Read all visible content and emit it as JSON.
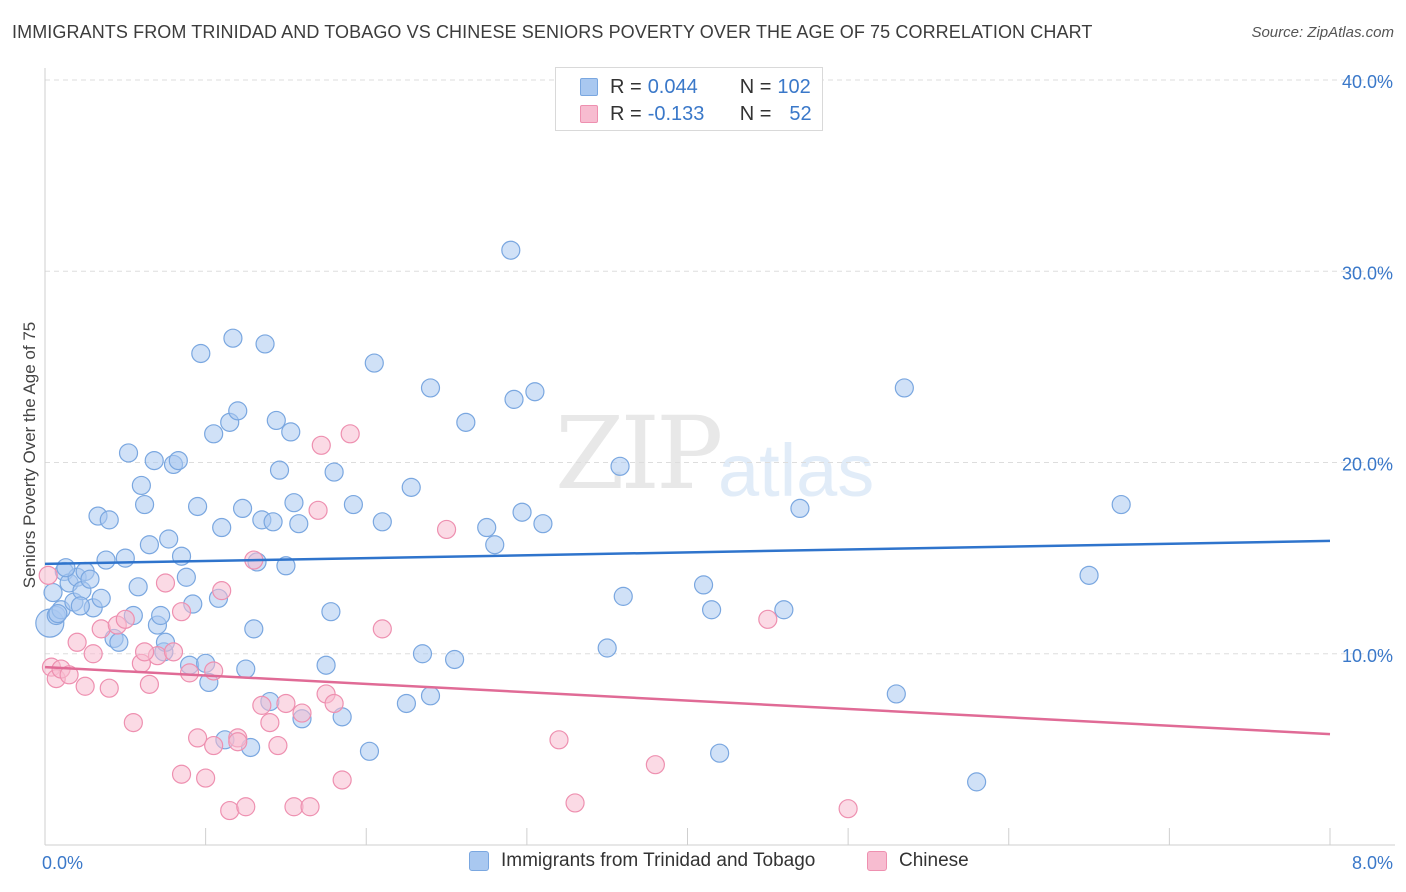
{
  "title": "IMMIGRANTS FROM TRINIDAD AND TOBAGO VS CHINESE SENIORS POVERTY OVER THE AGE OF 75 CORRELATION CHART",
  "source": "Source: ZipAtlas.com",
  "watermark": {
    "zip": "ZIP",
    "atlas": "atlas"
  },
  "colors": {
    "blue_fill": "#a9c8f0",
    "blue_stroke": "#7aa7e0",
    "blue_line": "#2f74cc",
    "pink_fill": "#f7bcd0",
    "pink_stroke": "#ee90b0",
    "pink_line": "#e06b96",
    "tick_label": "#3a78c9",
    "grid": "#dddddd"
  },
  "legend_top": {
    "rows": [
      {
        "r_label": "R = ",
        "r_value": "0.044",
        "n_label": "N = ",
        "n_value": "102"
      },
      {
        "r_label": "R = ",
        "r_value": "-0.133",
        "n_label": "N = ",
        "n_value": "52"
      }
    ]
  },
  "legend_bottom": [
    "Immigrants from Trinidad and Tobago",
    "Chinese"
  ],
  "chart_data": {
    "type": "scatter",
    "title": "IMMIGRANTS FROM TRINIDAD AND TOBAGO VS CHINESE SENIORS POVERTY OVER THE AGE OF 75 CORRELATION CHART",
    "xlabel": "",
    "ylabel": "Seniors Poverty Over the Age of 75",
    "xlim": [
      0,
      8
    ],
    "ylim": [
      0,
      40
    ],
    "x_tick_labels": [
      "0.0%",
      "8.0%"
    ],
    "y_ticks": [
      10,
      20,
      30,
      40
    ],
    "y_tick_labels": [
      "10.0%",
      "20.0%",
      "30.0%",
      "40.0%"
    ],
    "grid": true,
    "legend_position": "top-center",
    "series": [
      {
        "name": "Immigrants from Trinidad and Tobago",
        "color": "#a9c8f0",
        "trend": {
          "x": [
            0,
            8
          ],
          "y": [
            14.7,
            15.9
          ]
        },
        "points": [
          [
            0.03,
            11.6
          ],
          [
            0.05,
            13.2
          ],
          [
            0.07,
            12.0
          ],
          [
            0.1,
            12.3
          ],
          [
            0.12,
            14.3
          ],
          [
            0.15,
            13.7
          ],
          [
            0.18,
            12.7
          ],
          [
            0.2,
            14.0
          ],
          [
            0.23,
            13.3
          ],
          [
            0.25,
            14.3
          ],
          [
            0.28,
            13.9
          ],
          [
            0.3,
            12.4
          ],
          [
            0.33,
            17.2
          ],
          [
            0.35,
            12.9
          ],
          [
            0.38,
            14.9
          ],
          [
            0.4,
            17.0
          ],
          [
            0.43,
            10.8
          ],
          [
            0.46,
            10.6
          ],
          [
            0.5,
            15.0
          ],
          [
            0.52,
            20.5
          ],
          [
            0.55,
            12.0
          ],
          [
            0.58,
            13.5
          ],
          [
            0.6,
            18.8
          ],
          [
            0.62,
            17.8
          ],
          [
            0.65,
            15.7
          ],
          [
            0.68,
            20.1
          ],
          [
            0.7,
            11.5
          ],
          [
            0.72,
            12.0
          ],
          [
            0.74,
            10.1
          ],
          [
            0.75,
            10.6
          ],
          [
            0.77,
            16.0
          ],
          [
            0.8,
            19.9
          ],
          [
            0.83,
            20.1
          ],
          [
            0.85,
            15.1
          ],
          [
            0.88,
            14.0
          ],
          [
            0.9,
            9.4
          ],
          [
            0.92,
            12.6
          ],
          [
            0.95,
            17.7
          ],
          [
            0.97,
            25.7
          ],
          [
            1.0,
            9.5
          ],
          [
            1.02,
            8.5
          ],
          [
            1.05,
            21.5
          ],
          [
            1.08,
            12.9
          ],
          [
            1.1,
            16.6
          ],
          [
            1.12,
            5.5
          ],
          [
            1.15,
            22.1
          ],
          [
            1.17,
            26.5
          ],
          [
            1.2,
            22.7
          ],
          [
            1.23,
            17.6
          ],
          [
            1.25,
            9.2
          ],
          [
            1.28,
            5.1
          ],
          [
            1.3,
            11.3
          ],
          [
            1.32,
            14.8
          ],
          [
            1.35,
            17.0
          ],
          [
            1.37,
            26.2
          ],
          [
            1.4,
            7.5
          ],
          [
            1.42,
            16.9
          ],
          [
            1.44,
            22.2
          ],
          [
            1.46,
            19.6
          ],
          [
            1.5,
            14.6
          ],
          [
            1.53,
            21.6
          ],
          [
            1.55,
            17.9
          ],
          [
            1.58,
            16.8
          ],
          [
            1.6,
            6.6
          ],
          [
            1.75,
            9.4
          ],
          [
            1.78,
            12.2
          ],
          [
            1.8,
            19.5
          ],
          [
            1.85,
            6.7
          ],
          [
            1.92,
            17.8
          ],
          [
            2.02,
            4.9
          ],
          [
            2.05,
            25.2
          ],
          [
            2.1,
            16.9
          ],
          [
            2.25,
            7.4
          ],
          [
            2.28,
            18.7
          ],
          [
            2.35,
            10.0
          ],
          [
            2.4,
            23.9
          ],
          [
            2.4,
            7.8
          ],
          [
            2.55,
            9.7
          ],
          [
            2.62,
            22.1
          ],
          [
            2.75,
            16.6
          ],
          [
            2.8,
            15.7
          ],
          [
            2.9,
            31.1
          ],
          [
            2.92,
            23.3
          ],
          [
            2.97,
            17.4
          ],
          [
            3.05,
            23.7
          ],
          [
            3.1,
            16.8
          ],
          [
            3.5,
            10.3
          ],
          [
            3.58,
            19.8
          ],
          [
            3.6,
            13.0
          ],
          [
            4.1,
            13.6
          ],
          [
            4.15,
            12.3
          ],
          [
            4.2,
            4.8
          ],
          [
            4.6,
            12.3
          ],
          [
            4.7,
            17.6
          ],
          [
            5.3,
            7.9
          ],
          [
            5.35,
            23.9
          ],
          [
            5.8,
            3.3
          ],
          [
            6.5,
            14.1
          ],
          [
            6.7,
            17.8
          ],
          [
            0.08,
            12.1
          ],
          [
            0.13,
            14.5
          ],
          [
            0.22,
            12.5
          ]
        ]
      },
      {
        "name": "Chinese",
        "color": "#f7bcd0",
        "trend": {
          "x": [
            0,
            8
          ],
          "y": [
            9.3,
            5.8
          ]
        },
        "points": [
          [
            0.02,
            14.1
          ],
          [
            0.04,
            9.3
          ],
          [
            0.07,
            8.7
          ],
          [
            0.1,
            9.2
          ],
          [
            0.15,
            8.9
          ],
          [
            0.2,
            10.6
          ],
          [
            0.25,
            8.3
          ],
          [
            0.3,
            10.0
          ],
          [
            0.35,
            11.3
          ],
          [
            0.4,
            8.2
          ],
          [
            0.45,
            11.5
          ],
          [
            0.5,
            11.8
          ],
          [
            0.55,
            6.4
          ],
          [
            0.6,
            9.5
          ],
          [
            0.65,
            8.4
          ],
          [
            0.7,
            9.9
          ],
          [
            0.75,
            13.7
          ],
          [
            0.8,
            10.1
          ],
          [
            0.85,
            3.7
          ],
          [
            0.9,
            9.0
          ],
          [
            0.95,
            5.6
          ],
          [
            1.0,
            3.5
          ],
          [
            1.05,
            9.1
          ],
          [
            1.1,
            13.3
          ],
          [
            1.15,
            1.8
          ],
          [
            1.2,
            5.6
          ],
          [
            1.25,
            2.0
          ],
          [
            1.3,
            14.9
          ],
          [
            1.35,
            7.3
          ],
          [
            1.4,
            6.4
          ],
          [
            1.45,
            5.2
          ],
          [
            1.5,
            7.4
          ],
          [
            1.55,
            2.0
          ],
          [
            1.6,
            6.9
          ],
          [
            1.65,
            2.0
          ],
          [
            1.7,
            17.5
          ],
          [
            1.72,
            20.9
          ],
          [
            1.75,
            7.9
          ],
          [
            1.8,
            7.4
          ],
          [
            1.85,
            3.4
          ],
          [
            1.9,
            21.5
          ],
          [
            2.1,
            11.3
          ],
          [
            2.5,
            16.5
          ],
          [
            3.2,
            5.5
          ],
          [
            3.3,
            2.2
          ],
          [
            3.8,
            4.2
          ],
          [
            4.5,
            11.8
          ],
          [
            5.0,
            1.9
          ],
          [
            1.05,
            5.2
          ],
          [
            0.62,
            10.1
          ],
          [
            0.85,
            12.2
          ],
          [
            1.2,
            5.4
          ]
        ]
      }
    ]
  }
}
